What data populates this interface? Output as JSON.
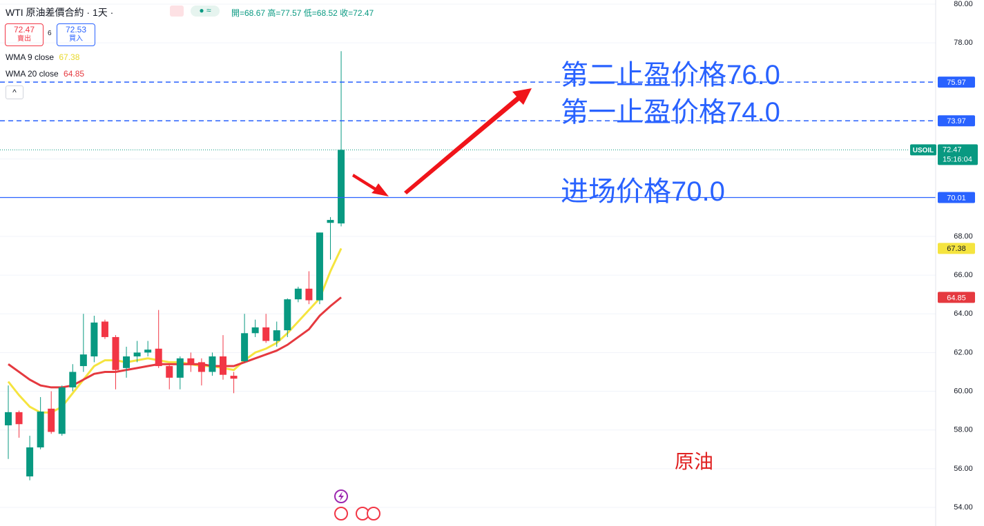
{
  "chart_data": {
    "type": "candlestick",
    "title": "WTI 原油差價合約 · 1天 ·",
    "ohlc_labels": [
      "開=68.67",
      "高=77.57",
      "低=68.52",
      "收=72.47"
    ],
    "quote": {
      "sell": 72.47,
      "sell_label": "賣出",
      "spread": 6,
      "buy": 72.53,
      "buy_label": "買入"
    },
    "categories": [
      null,
      null,
      null,
      null,
      null,
      null,
      null,
      null,
      null,
      null,
      null,
      null,
      null,
      null,
      null,
      null,
      null,
      null,
      null,
      null,
      null,
      null,
      null,
      null,
      null,
      null,
      null,
      null,
      null,
      null,
      null,
      null
    ],
    "open": [
      58.24,
      58.92,
      55.6,
      57.1,
      59.1,
      57.8,
      60.2,
      61.3,
      61.8,
      63.6,
      62.8,
      61.2,
      61.8,
      62.0,
      62.2,
      61.3,
      60.7,
      61.7,
      61.5,
      61.0,
      61.8,
      60.8,
      61.55,
      63.0,
      63.3,
      62.6,
      63.15,
      64.75,
      65.3,
      64.7,
      68.7,
      68.67
    ],
    "high": [
      60.3,
      59.0,
      57.7,
      59.7,
      60.0,
      60.3,
      61.4,
      64.0,
      63.9,
      63.7,
      62.9,
      62.3,
      62.6,
      62.6,
      64.2,
      61.4,
      61.8,
      62.0,
      61.7,
      62.0,
      62.9,
      61.0,
      64.0,
      63.7,
      64.0,
      63.6,
      64.8,
      65.4,
      66.2,
      68.2,
      69.0,
      77.57
    ],
    "low": [
      56.5,
      57.6,
      55.4,
      57.0,
      57.8,
      57.7,
      60.0,
      61.0,
      61.5,
      62.7,
      60.1,
      60.7,
      61.5,
      61.8,
      61.2,
      60.1,
      60.1,
      61.0,
      60.3,
      60.8,
      60.6,
      59.9,
      61.5,
      62.8,
      62.5,
      62.3,
      62.8,
      64.6,
      64.5,
      64.5,
      66.8,
      68.52
    ],
    "close": [
      58.92,
      58.3,
      57.1,
      58.95,
      57.9,
      60.2,
      61.0,
      61.9,
      63.55,
      62.8,
      61.1,
      61.8,
      62.0,
      62.15,
      61.3,
      60.7,
      61.7,
      61.4,
      61.0,
      61.8,
      60.85,
      60.65,
      63.0,
      63.3,
      62.6,
      63.15,
      64.75,
      65.3,
      64.7,
      68.2,
      68.85,
      72.47
    ],
    "up_color": "#089981",
    "down_color": "#f23645",
    "series": [
      {
        "name": "WMA 9 close",
        "color": "#f5e43f",
        "values": [
          60.5,
          59.8,
          59.2,
          58.9,
          58.9,
          59.2,
          59.9,
          60.6,
          61.3,
          61.6,
          61.6,
          61.5,
          61.6,
          61.7,
          61.6,
          61.5,
          61.5,
          61.4,
          61.3,
          61.3,
          61.2,
          61.1,
          61.6,
          62.0,
          62.2,
          62.5,
          63.0,
          63.6,
          64.2,
          64.8,
          66.2,
          67.38
        ]
      },
      {
        "name": "WMA 20 close",
        "color": "#e5393f",
        "values": [
          61.4,
          61.0,
          60.6,
          60.3,
          60.2,
          60.2,
          60.3,
          60.6,
          60.9,
          61.0,
          61.0,
          61.1,
          61.2,
          61.3,
          61.4,
          61.4,
          61.4,
          61.4,
          61.4,
          61.3,
          61.3,
          61.3,
          61.5,
          61.7,
          61.9,
          62.1,
          62.4,
          62.8,
          63.2,
          63.9,
          64.4,
          64.85
        ]
      }
    ],
    "price_lines": [
      {
        "value": 75.97,
        "style": "dashed",
        "color": "#2962ff"
      },
      {
        "value": 73.97,
        "style": "dashed",
        "color": "#2962ff"
      },
      {
        "value": 70.01,
        "style": "solid",
        "color": "#2962ff"
      }
    ],
    "last_price": {
      "value": 72.47,
      "symbol": "USOIL",
      "countdown": "15:16:04",
      "color": "#089981"
    },
    "ylim": [
      54,
      80
    ],
    "yticks": [
      {
        "value": 54,
        "label": "54.00"
      },
      {
        "value": 56,
        "label": "56.00"
      },
      {
        "value": 58,
        "label": "58.00"
      },
      {
        "value": 60,
        "label": "60.00"
      },
      {
        "value": 62,
        "label": "62.00"
      },
      {
        "value": 64,
        "label": "64.00"
      },
      {
        "value": 66,
        "label": "66.00"
      },
      {
        "value": 68,
        "label": "68.00"
      },
      {
        "value": 70,
        "label": "70.00"
      },
      {
        "value": 72,
        "label": "72.00"
      },
      {
        "value": 74,
        "label": "74.00"
      },
      {
        "value": 76,
        "label": "76.00"
      },
      {
        "value": 78,
        "label": "78.00"
      },
      {
        "value": 80,
        "label": "80.00"
      }
    ],
    "grid": true,
    "annotations": [
      "第二止盈价格76.0",
      "第一止盈价格74.0",
      "进场价格70.0",
      "原油"
    ]
  }
}
